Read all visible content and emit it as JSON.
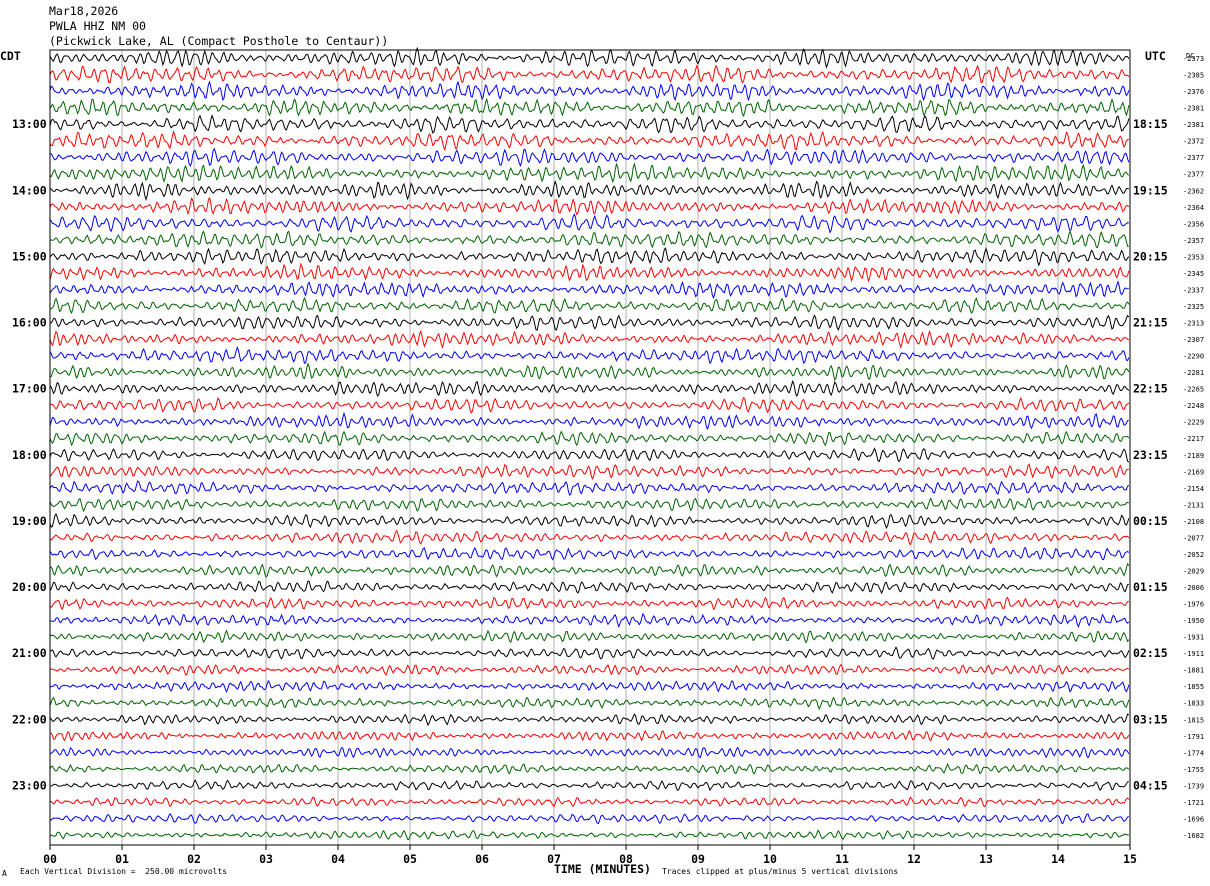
{
  "header": {
    "date": "Mar18,2026",
    "station": "PWLA HHZ NM 00",
    "location": "(Pickwick Lake, AL (Compact Posthole to Centaur))"
  },
  "axes": {
    "left_tz": "CDT",
    "right_tz": "UTC",
    "dc_label": "DC",
    "xlabel": "TIME (MINUTES)"
  },
  "footer": {
    "scale_note": "Each Vertical Division =  250.00 microvolts",
    "clip_note": "Traces clipped at plus/minus 5 vertical divisions",
    "corner_mark": "A"
  },
  "colors": {
    "trace_cycle": [
      "#000000",
      "#ff0000",
      "#0000ff",
      "#006400"
    ],
    "grid": "#7f7f7f"
  },
  "chart_data": {
    "type": "line",
    "subtype": "helicorder",
    "x_ticks": [
      "00",
      "01",
      "02",
      "03",
      "04",
      "05",
      "06",
      "07",
      "08",
      "09",
      "10",
      "11",
      "12",
      "13",
      "14",
      "15"
    ],
    "xlim": [
      0,
      15
    ],
    "minutes_per_trace": 15,
    "num_traces": 48,
    "left_hour_labels": [
      "13:00",
      "14:00",
      "15:00",
      "16:00",
      "17:00",
      "18:00",
      "19:00",
      "20:00",
      "21:00",
      "22:00",
      "23:00"
    ],
    "right_hour_labels": [
      "18:15",
      "19:15",
      "20:15",
      "21:15",
      "22:15",
      "23:15",
      "00:15",
      "01:15",
      "02:15",
      "03:15",
      "04:15"
    ],
    "first_labeled_trace": 4,
    "traces_per_hour": 4,
    "dc_offsets": [
      -2373,
      -2385,
      -2376,
      -2381,
      -2381,
      -2372,
      -2377,
      -2377,
      -2362,
      -2364,
      -2356,
      -2357,
      -2353,
      -2345,
      -2337,
      -2325,
      -2313,
      -2307,
      -2290,
      -2281,
      -2265,
      -2248,
      -2229,
      -2217,
      -2189,
      -2169,
      -2154,
      -2131,
      -2108,
      -2077,
      -2052,
      -2029,
      -2006,
      -1976,
      -1950,
      -1931,
      -1911,
      -1881,
      -1855,
      -1833,
      -1815,
      -1791,
      -1774,
      -1755,
      -1739,
      -1721,
      -1696,
      -1682
    ],
    "grid": true
  }
}
